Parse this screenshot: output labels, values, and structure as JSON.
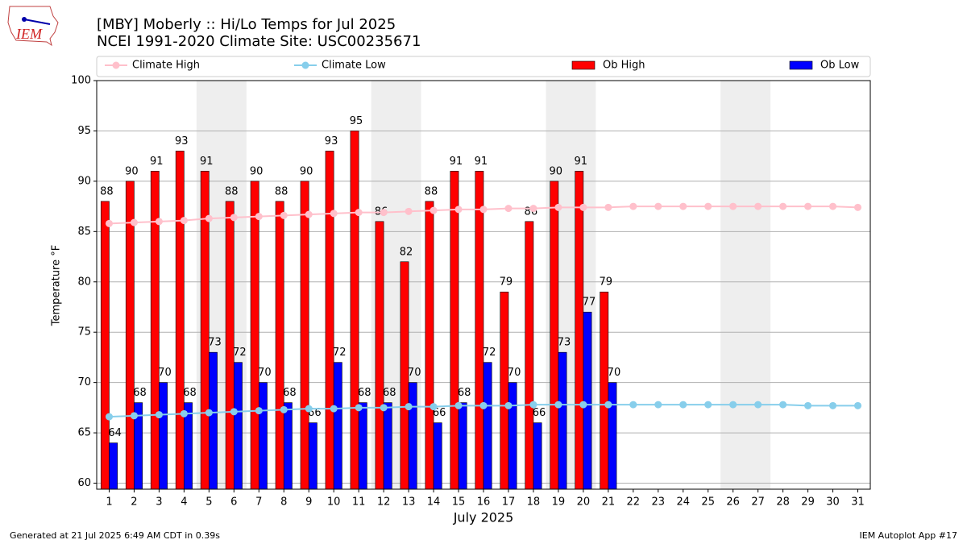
{
  "logo": "IEM",
  "footer_left": "Generated at 21 Jul 2025 6:49 AM CDT in 0.39s",
  "footer_right": "IEM Autoplot App #17",
  "chart_data": {
    "type": "bar",
    "title": "[MBY] Moberly :: Hi/Lo Temps for Jul 2025",
    "subtitle": "NCEI 1991-2020 Climate Site: USC00235671",
    "x_label": "July 2025",
    "y_label": "Temperature °F",
    "x": [
      1,
      2,
      3,
      4,
      5,
      6,
      7,
      8,
      9,
      10,
      11,
      12,
      13,
      14,
      15,
      16,
      17,
      18,
      19,
      20,
      21,
      22,
      23,
      24,
      25,
      26,
      27,
      28,
      29,
      30,
      31
    ],
    "xlim": [
      0.5,
      31.5
    ],
    "xticks": [
      1,
      2,
      3,
      4,
      5,
      6,
      7,
      8,
      9,
      10,
      11,
      12,
      13,
      14,
      15,
      16,
      17,
      18,
      19,
      20,
      21,
      22,
      23,
      24,
      25,
      26,
      27,
      28,
      29,
      30,
      31
    ],
    "ylim": [
      59.4,
      100
    ],
    "yticks": [
      60,
      65,
      70,
      75,
      80,
      85,
      90,
      95,
      100
    ],
    "grid": true,
    "legend": "top",
    "shaded_spans": [
      [
        5,
        6
      ],
      [
        12,
        13
      ],
      [
        19,
        20
      ],
      [
        26,
        27
      ]
    ],
    "series": [
      {
        "name": "Climate High",
        "type": "line",
        "color": "#ffc0cb",
        "values": [
          85.8,
          85.9,
          86.0,
          86.1,
          86.3,
          86.4,
          86.5,
          86.6,
          86.7,
          86.8,
          86.9,
          86.9,
          87.0,
          87.1,
          87.2,
          87.2,
          87.3,
          87.3,
          87.4,
          87.4,
          87.4,
          87.5,
          87.5,
          87.5,
          87.5,
          87.5,
          87.5,
          87.5,
          87.5,
          87.5,
          87.4
        ]
      },
      {
        "name": "Climate Low",
        "type": "line",
        "color": "#87ceeb",
        "values": [
          66.6,
          66.7,
          66.8,
          66.9,
          67.0,
          67.1,
          67.2,
          67.3,
          67.4,
          67.4,
          67.5,
          67.5,
          67.6,
          67.6,
          67.7,
          67.7,
          67.7,
          67.8,
          67.8,
          67.8,
          67.8,
          67.8,
          67.8,
          67.8,
          67.8,
          67.8,
          67.8,
          67.8,
          67.7,
          67.7,
          67.7
        ]
      },
      {
        "name": "Ob High",
        "type": "bar",
        "color": "#ff0000",
        "values": [
          88,
          90,
          91,
          93,
          91,
          88,
          90,
          88,
          90,
          93,
          95,
          86,
          82,
          88,
          91,
          91,
          79,
          86,
          90,
          91,
          79,
          null,
          null,
          null,
          null,
          null,
          null,
          null,
          null,
          null,
          null
        ]
      },
      {
        "name": "Ob Low",
        "type": "bar",
        "color": "#0000ff",
        "values": [
          64,
          68,
          70,
          68,
          73,
          72,
          70,
          68,
          66,
          72,
          68,
          68,
          70,
          66,
          68,
          72,
          70,
          66,
          73,
          77,
          70,
          null,
          null,
          null,
          null,
          null,
          null,
          null,
          null,
          null,
          null
        ]
      }
    ]
  }
}
